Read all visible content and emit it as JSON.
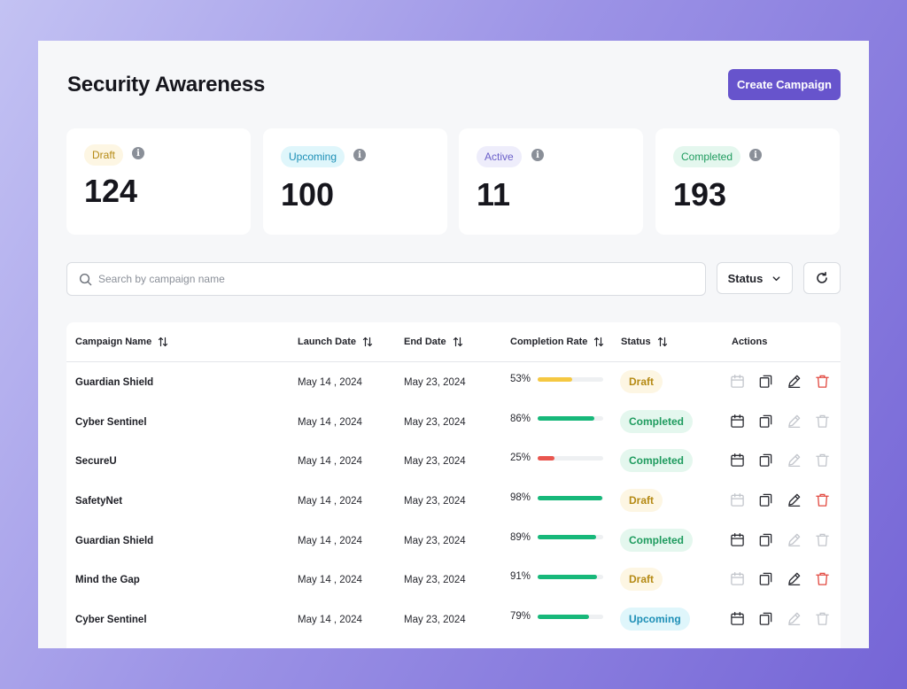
{
  "page": {
    "title": "Security Awareness",
    "create_button": "Create Campaign"
  },
  "stats": [
    {
      "label": "Draft",
      "value": "124"
    },
    {
      "label": "Upcoming",
      "value": "100"
    },
    {
      "label": "Active",
      "value": "11"
    },
    {
      "label": "Completed",
      "value": "193"
    }
  ],
  "toolbar": {
    "search_placeholder": "Search by campaign name",
    "status_filter": "Status"
  },
  "table": {
    "columns": {
      "name": "Campaign Name",
      "launch": "Launch Date",
      "end": "End Date",
      "rate": "Completion Rate",
      "status": "Status",
      "actions": "Actions"
    },
    "rows": [
      {
        "name": "Guardian Shield",
        "launch": "May 14 , 2024",
        "end": "May 23, 2024",
        "rate": "53%",
        "rate_value": 53,
        "status": "Draft"
      },
      {
        "name": "Cyber Sentinel",
        "launch": "May 14 , 2024",
        "end": "May 23, 2024",
        "rate": "86%",
        "rate_value": 86,
        "status": "Completed"
      },
      {
        "name": "SecureU",
        "launch": "May 14 , 2024",
        "end": "May 23, 2024",
        "rate": "25%",
        "rate_value": 25,
        "status": "Completed"
      },
      {
        "name": "SafetyNet",
        "launch": "May 14 , 2024",
        "end": "May 23, 2024",
        "rate": "98%",
        "rate_value": 98,
        "status": "Draft"
      },
      {
        "name": "Guardian Shield",
        "launch": "May 14 , 2024",
        "end": "May 23, 2024",
        "rate": "89%",
        "rate_value": 89,
        "status": "Completed"
      },
      {
        "name": "Mind the Gap",
        "launch": "May 14 , 2024",
        "end": "May 23, 2024",
        "rate": "91%",
        "rate_value": 91,
        "status": "Draft"
      },
      {
        "name": "Cyber Sentinel",
        "launch": "May 14 , 2024",
        "end": "May 23, 2024",
        "rate": "79%",
        "rate_value": 79,
        "status": "Upcoming"
      }
    ]
  },
  "icons": {
    "info": "info-icon",
    "search": "search-icon",
    "chevron": "chevron-down-icon",
    "refresh": "refresh-icon",
    "sort": "sort-icon",
    "schedule": "calendar-icon",
    "duplicate": "copy-icon",
    "edit": "pencil-icon",
    "delete": "trash-icon"
  },
  "colors": {
    "accent": "#6754cc",
    "draft_bg": "#fdf6e3",
    "draft_fg": "#b58a14",
    "upcoming_bg": "#dff6fb",
    "upcoming_fg": "#1d8fb6",
    "active_bg": "#eeedfb",
    "active_fg": "#6a5fc9",
    "completed_bg": "#e4f7ee",
    "completed_fg": "#1e9b5e",
    "bar_yellow": "#f5c842",
    "bar_green": "#17b87a",
    "bar_red": "#e9564f",
    "delete_red": "#e24a41"
  }
}
